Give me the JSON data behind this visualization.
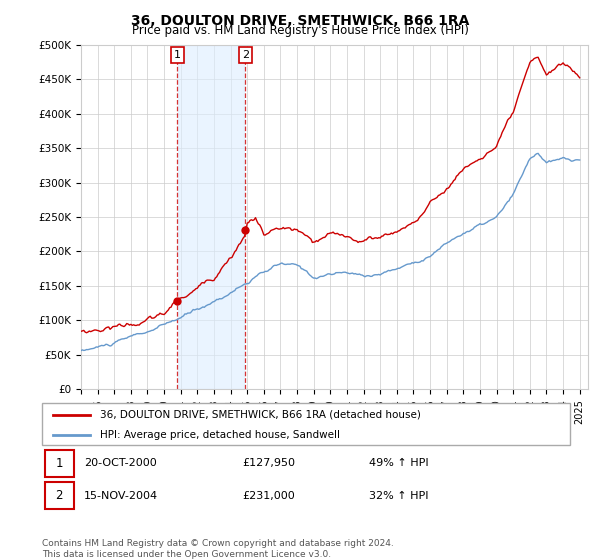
{
  "title": "36, DOULTON DRIVE, SMETHWICK, B66 1RA",
  "subtitle": "Price paid vs. HM Land Registry's House Price Index (HPI)",
  "ylim": [
    0,
    500000
  ],
  "xlim_start": 1995.0,
  "xlim_end": 2025.5,
  "transaction1": {
    "date_num": 2000.8,
    "price": 127950,
    "label": "1",
    "date_str": "20-OCT-2000",
    "pct": "49%",
    "dir": "↑"
  },
  "transaction2": {
    "date_num": 2004.88,
    "price": 231000,
    "label": "2",
    "date_str": "15-NOV-2004",
    "pct": "32%",
    "dir": "↑"
  },
  "legend_house": "36, DOULTON DRIVE, SMETHWICK, B66 1RA (detached house)",
  "legend_hpi": "HPI: Average price, detached house, Sandwell",
  "footnote": "Contains HM Land Registry data © Crown copyright and database right 2024.\nThis data is licensed under the Open Government Licence v3.0.",
  "red_color": "#cc0000",
  "blue_color": "#6699cc",
  "shaded_color": "#ddeeff",
  "grid_color": "#cccccc",
  "bg_color": "#ffffff"
}
